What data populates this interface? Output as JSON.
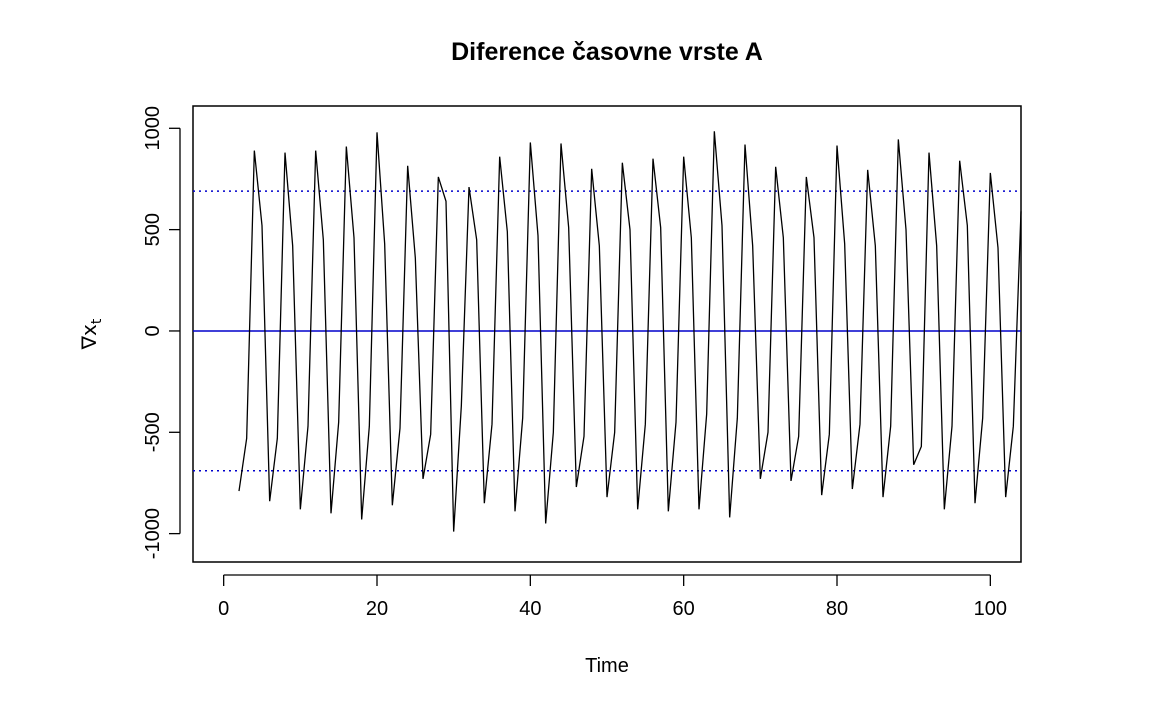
{
  "chart_data": {
    "type": "line",
    "title": "Diference časovne vrste A",
    "xlabel": "Time",
    "ylabel": {
      "symbol": "∇x",
      "subscript": "t"
    },
    "xlim": [
      -4,
      104
    ],
    "ylim": [
      -1140,
      1110
    ],
    "x_ticks": [
      0,
      20,
      40,
      60,
      80,
      100
    ],
    "x_tick_labels": [
      "0",
      "20",
      "40",
      "60",
      "80",
      "100"
    ],
    "y_ticks": [
      -1000,
      -500,
      0,
      500,
      1000
    ],
    "y_tick_labels": [
      "-1000",
      "-500",
      "0",
      "500",
      "1000"
    ],
    "grid": false,
    "reference_lines": [
      {
        "y": 0,
        "style": "solid",
        "color": "#0000cc"
      },
      {
        "y": 690,
        "style": "dotted",
        "color": "#0000cc"
      },
      {
        "y": -690,
        "style": "dotted",
        "color": "#0000cc"
      }
    ],
    "series": [
      {
        "color": "#000000",
        "x": [
          2,
          3,
          4,
          5,
          6,
          7,
          8,
          9,
          10,
          11,
          12,
          13,
          14,
          15,
          16,
          17,
          18,
          19,
          20,
          21,
          22,
          23,
          24,
          25,
          26,
          27,
          28,
          29,
          30,
          31,
          32,
          33,
          34,
          35,
          36,
          37,
          38,
          39,
          40,
          41,
          42,
          43,
          44,
          45,
          46,
          47,
          48,
          49,
          50,
          51,
          52,
          53,
          54,
          55,
          56,
          57,
          58,
          59,
          60,
          61,
          62,
          63,
          64,
          65,
          66,
          67,
          68,
          69,
          70,
          71,
          72,
          73,
          74,
          75,
          76,
          77,
          78,
          79,
          80,
          81,
          82,
          83,
          84,
          85,
          86,
          87,
          88,
          89,
          90,
          91,
          92,
          93,
          94,
          95,
          96,
          97,
          98,
          99,
          100,
          101,
          102,
          103,
          104
        ],
        "values": [
          -790,
          -530,
          890,
          520,
          -840,
          -530,
          880,
          420,
          -880,
          -470,
          890,
          450,
          -900,
          -450,
          910,
          460,
          -930,
          -470,
          980,
          430,
          -860,
          -480,
          815,
          360,
          -730,
          -510,
          760,
          640,
          -990,
          -370,
          710,
          450,
          -850,
          -460,
          860,
          490,
          -890,
          -430,
          930,
          470,
          -950,
          -500,
          925,
          510,
          -770,
          -520,
          800,
          420,
          -820,
          -500,
          830,
          500,
          -880,
          -460,
          850,
          510,
          -890,
          -450,
          860,
          460,
          -880,
          -410,
          985,
          520,
          -920,
          -430,
          920,
          420,
          -730,
          -500,
          810,
          460,
          -740,
          -520,
          760,
          460,
          -810,
          -510,
          915,
          430,
          -780,
          -460,
          795,
          420,
          -820,
          -470,
          945,
          500,
          -660,
          -570,
          880,
          420,
          -880,
          -470,
          840,
          520,
          -850,
          -430,
          780,
          410,
          -820,
          -470,
          590
        ]
      }
    ]
  }
}
